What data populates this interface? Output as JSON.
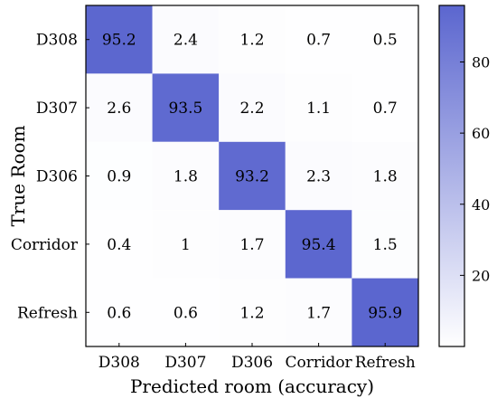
{
  "chart_data": {
    "type": "heatmap",
    "title": "",
    "xlabel": "Predicted room (accuracy)",
    "ylabel": "True Room",
    "x_categories": [
      "D308",
      "D307",
      "D306",
      "Corridor",
      "Refresh"
    ],
    "y_categories": [
      "D308",
      "D307",
      "D306",
      "Corridor",
      "Refresh"
    ],
    "values": [
      [
        95.2,
        2.4,
        1.2,
        0.7,
        0.5
      ],
      [
        2.6,
        93.5,
        2.2,
        1.1,
        0.7
      ],
      [
        0.9,
        1.8,
        93.2,
        2.3,
        1.8
      ],
      [
        0.4,
        1,
        1.7,
        95.4,
        1.5
      ],
      [
        0.6,
        0.6,
        1.2,
        1.7,
        95.9
      ]
    ],
    "value_range": [
      0,
      95.9
    ],
    "colormap": {
      "low": "#ffffff",
      "high": "#5b66cf"
    },
    "colorbar": {
      "ticks": [
        20,
        40,
        60,
        80
      ],
      "range": [
        0,
        95.9
      ]
    },
    "grid": false,
    "legend": "colorbar-right"
  }
}
